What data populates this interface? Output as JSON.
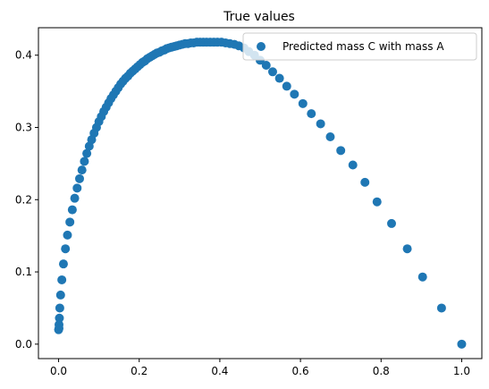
{
  "chart_data": {
    "type": "scatter",
    "title": "True values",
    "xlabel": "",
    "ylabel": "",
    "xlim": [
      -0.05,
      1.05
    ],
    "ylim": [
      -0.02,
      0.438
    ],
    "xticks": [
      0.0,
      0.2,
      0.4,
      0.6,
      0.8,
      1.0
    ],
    "xtick_labels": [
      "0.0",
      "0.2",
      "0.4",
      "0.6",
      "0.8",
      "1.0"
    ],
    "yticks": [
      0.0,
      0.1,
      0.2,
      0.3,
      0.4
    ],
    "ytick_labels": [
      "0.0",
      "0.1",
      "0.2",
      "0.3",
      "0.4"
    ],
    "grid": false,
    "legend_position": "top-right",
    "series": [
      {
        "name": "Predicted mass C with mass A",
        "color": "#1f77b4",
        "points": [
          [
            1.0,
            0.0
          ],
          [
            0.95,
            0.05
          ],
          [
            0.903,
            0.093
          ],
          [
            0.865,
            0.132
          ],
          [
            0.826,
            0.167
          ],
          [
            0.79,
            0.197
          ],
          [
            0.76,
            0.224
          ],
          [
            0.73,
            0.248
          ],
          [
            0.7,
            0.268
          ],
          [
            0.674,
            0.287
          ],
          [
            0.65,
            0.305
          ],
          [
            0.627,
            0.319
          ],
          [
            0.606,
            0.333
          ],
          [
            0.585,
            0.346
          ],
          [
            0.566,
            0.357
          ],
          [
            0.548,
            0.368
          ],
          [
            0.531,
            0.377
          ],
          [
            0.515,
            0.386
          ],
          [
            0.5,
            0.393
          ],
          [
            0.486,
            0.4
          ],
          [
            0.472,
            0.405
          ],
          [
            0.46,
            0.41
          ],
          [
            0.447,
            0.413
          ],
          [
            0.436,
            0.415
          ],
          [
            0.425,
            0.416
          ],
          [
            0.414,
            0.417
          ],
          [
            0.404,
            0.418
          ],
          [
            0.394,
            0.418
          ],
          [
            0.385,
            0.418
          ],
          [
            0.376,
            0.418
          ],
          [
            0.367,
            0.418
          ],
          [
            0.359,
            0.418
          ],
          [
            0.351,
            0.418
          ],
          [
            0.343,
            0.418
          ],
          [
            0.335,
            0.417
          ],
          [
            0.328,
            0.417
          ],
          [
            0.321,
            0.416
          ],
          [
            0.314,
            0.416
          ],
          [
            0.307,
            0.415
          ],
          [
            0.3,
            0.414
          ],
          [
            0.293,
            0.413
          ],
          [
            0.287,
            0.412
          ],
          [
            0.28,
            0.411
          ],
          [
            0.274,
            0.41
          ],
          [
            0.268,
            0.409
          ],
          [
            0.262,
            0.407
          ],
          [
            0.256,
            0.406
          ],
          [
            0.25,
            0.404
          ],
          [
            0.244,
            0.403
          ],
          [
            0.238,
            0.401
          ],
          [
            0.232,
            0.399
          ],
          [
            0.226,
            0.397
          ],
          [
            0.22,
            0.395
          ],
          [
            0.214,
            0.392
          ],
          [
            0.208,
            0.39
          ],
          [
            0.202,
            0.387
          ],
          [
            0.196,
            0.384
          ],
          [
            0.19,
            0.381
          ],
          [
            0.184,
            0.378
          ],
          [
            0.178,
            0.375
          ],
          [
            0.172,
            0.371
          ],
          [
            0.166,
            0.368
          ],
          [
            0.16,
            0.364
          ],
          [
            0.154,
            0.36
          ],
          [
            0.148,
            0.355
          ],
          [
            0.142,
            0.35
          ],
          [
            0.136,
            0.345
          ],
          [
            0.13,
            0.34
          ],
          [
            0.124,
            0.334
          ],
          [
            0.118,
            0.328
          ],
          [
            0.112,
            0.322
          ],
          [
            0.106,
            0.315
          ],
          [
            0.1,
            0.308
          ],
          [
            0.094,
            0.3
          ],
          [
            0.088,
            0.292
          ],
          [
            0.082,
            0.283
          ],
          [
            0.076,
            0.274
          ],
          [
            0.07,
            0.264
          ],
          [
            0.064,
            0.253
          ],
          [
            0.058,
            0.241
          ],
          [
            0.052,
            0.229
          ],
          [
            0.046,
            0.216
          ],
          [
            0.04,
            0.202
          ],
          [
            0.034,
            0.186
          ],
          [
            0.028,
            0.169
          ],
          [
            0.022,
            0.151
          ],
          [
            0.017,
            0.132
          ],
          [
            0.012,
            0.111
          ],
          [
            0.008,
            0.089
          ],
          [
            0.005,
            0.068
          ],
          [
            0.003,
            0.05
          ],
          [
            0.002,
            0.036
          ],
          [
            0.001,
            0.027
          ],
          [
            0.001,
            0.022
          ],
          [
            0.0,
            0.02
          ]
        ]
      }
    ]
  }
}
